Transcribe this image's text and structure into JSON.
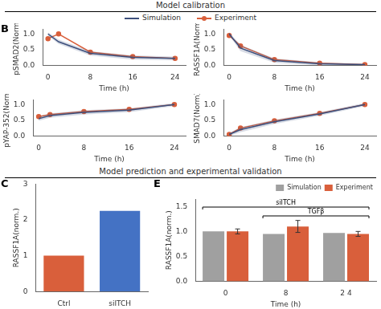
{
  "chart_data": [
    {
      "type": "line",
      "title": "Model calibration",
      "legend": "top",
      "annotations": [
        {
          "text": "B"
        }
      ],
      "xlabel": "Time (h)",
      "ylabel": "pSMAD2(Norm)",
      "x": [
        0,
        2,
        8,
        16,
        24
      ],
      "xlim": [
        -1,
        26
      ],
      "xticks": [
        0,
        8,
        16,
        24
      ],
      "ylim": [
        0,
        1.15
      ],
      "yticks": [
        {
          "value": 0,
          "label": "0.0"
        },
        {
          "value": 0.5,
          "label": "0.5"
        },
        {
          "value": 1,
          "label": "1.0"
        }
      ],
      "grid": false,
      "series": [
        {
          "name": "Simulation",
          "color": "#3d4f7c",
          "values": [
            1.0,
            0.75,
            0.38,
            0.25,
            0.22
          ],
          "band_upper": [
            1.05,
            0.82,
            0.45,
            0.32,
            0.28
          ],
          "band_lower": [
            0.95,
            0.68,
            0.31,
            0.18,
            0.16
          ]
        },
        {
          "name": "Experiment",
          "color": "#d95f3b",
          "marker": "circle",
          "values": [
            0.85,
            1.0,
            0.42,
            0.28,
            0.22
          ]
        }
      ]
    },
    {
      "type": "line",
      "xlabel": "Time (h)",
      "ylabel": "RASSF1A(Norm)",
      "x": [
        0,
        2,
        8,
        16,
        24
      ],
      "xlim": [
        -1,
        26
      ],
      "xticks": [
        0,
        8,
        16,
        24
      ],
      "ylim": [
        0,
        1.15
      ],
      "yticks": [
        {
          "value": 0,
          "label": "0.0"
        },
        {
          "value": 0.5,
          "label": "0.5"
        },
        {
          "value": 1,
          "label": "1.0"
        }
      ],
      "grid": false,
      "series": [
        {
          "name": "Simulation",
          "color": "#3d4f7c",
          "values": [
            1.0,
            0.55,
            0.15,
            0.05,
            0.02
          ],
          "band_upper": [
            1.05,
            0.65,
            0.22,
            0.1,
            0.05
          ],
          "band_lower": [
            0.95,
            0.45,
            0.08,
            0.0,
            0.0
          ]
        },
        {
          "name": "Experiment",
          "color": "#d95f3b",
          "marker": "circle",
          "values": [
            0.95,
            0.62,
            0.18,
            0.07,
            0.02
          ]
        }
      ]
    },
    {
      "type": "line",
      "xlabel": "Time (h)",
      "ylabel": "pYAP-352(Norm)",
      "x": [
        0,
        2,
        8,
        16,
        24
      ],
      "xlim": [
        -1,
        26
      ],
      "xticks": [
        0,
        8,
        16,
        24
      ],
      "ylim": [
        0,
        1.15
      ],
      "yticks": [
        {
          "value": 0,
          "label": "0.0"
        },
        {
          "value": 0.5,
          "label": "0.5"
        },
        {
          "value": 1,
          "label": "1.0"
        }
      ],
      "grid": false,
      "series": [
        {
          "name": "Simulation",
          "color": "#3d4f7c",
          "values": [
            0.55,
            0.65,
            0.75,
            0.82,
            1.0
          ],
          "band_upper": [
            0.62,
            0.72,
            0.82,
            0.88,
            1.05
          ],
          "band_lower": [
            0.48,
            0.58,
            0.68,
            0.76,
            0.95
          ]
        },
        {
          "name": "Experiment",
          "color": "#d95f3b",
          "marker": "circle",
          "values": [
            0.62,
            0.68,
            0.78,
            0.85,
            1.0
          ]
        }
      ]
    },
    {
      "type": "line",
      "xlabel": "Time (h)",
      "ylabel": "SMAD7(Norm)",
      "x": [
        0,
        2,
        8,
        16,
        24
      ],
      "xlim": [
        -1,
        26
      ],
      "xticks": [
        0,
        8,
        16,
        24
      ],
      "ylim": [
        0,
        1.15
      ],
      "yticks": [
        {
          "value": 0,
          "label": "0.0"
        },
        {
          "value": 0.5,
          "label": "0.5"
        },
        {
          "value": 1,
          "label": "1.0"
        }
      ],
      "grid": false,
      "series": [
        {
          "name": "Simulation",
          "color": "#3d4f7c",
          "values": [
            0.05,
            0.2,
            0.45,
            0.7,
            1.0
          ],
          "band_upper": [
            0.1,
            0.28,
            0.52,
            0.76,
            1.05
          ],
          "band_lower": [
            0.0,
            0.12,
            0.38,
            0.64,
            0.95
          ]
        },
        {
          "name": "Experiment",
          "color": "#d95f3b",
          "marker": "circle",
          "values": [
            0.05,
            0.25,
            0.48,
            0.72,
            1.0
          ]
        }
      ]
    },
    {
      "type": "bar",
      "title": "Model prediction and experimental validation",
      "annotations": [
        {
          "text": "C"
        }
      ],
      "categories": [
        "Ctrl",
        "siITCH"
      ],
      "values": [
        1.0,
        2.25
      ],
      "colors": [
        "#d95f3b",
        "#4472c4"
      ],
      "ylabel": "RASSF1A(norm.)",
      "ylim": [
        0,
        3
      ],
      "yticks": [
        0,
        1,
        2,
        3
      ],
      "grid": false
    },
    {
      "type": "bar",
      "annotations": [
        {
          "text": "E"
        },
        {
          "text": "siITCH",
          "categories": [
            "0",
            "8",
            "2 4"
          ]
        },
        {
          "text": "TGFβ",
          "categories": [
            "8",
            "2 4"
          ]
        }
      ],
      "categories": [
        "0",
        "8",
        "2 4"
      ],
      "xlabel": "Time (h)",
      "ylabel": "RASSF1A(norm.)",
      "ylim": [
        0,
        1.65
      ],
      "yticks": [
        {
          "value": 0,
          "label": "0.0"
        },
        {
          "value": 0.5,
          "label": "0.5"
        },
        {
          "value": 1,
          "label": "1.0"
        },
        {
          "value": 1.5,
          "label": "1.5"
        }
      ],
      "legend": "upper right",
      "grid": false,
      "series": [
        {
          "name": "Simulation",
          "color": "#a0a0a0",
          "values": [
            1.0,
            0.95,
            0.97
          ]
        },
        {
          "name": "Experiment",
          "color": "#d95f3b",
          "values": [
            1.0,
            1.1,
            0.95
          ],
          "error": [
            0.05,
            0.12,
            0.05
          ]
        }
      ]
    }
  ]
}
